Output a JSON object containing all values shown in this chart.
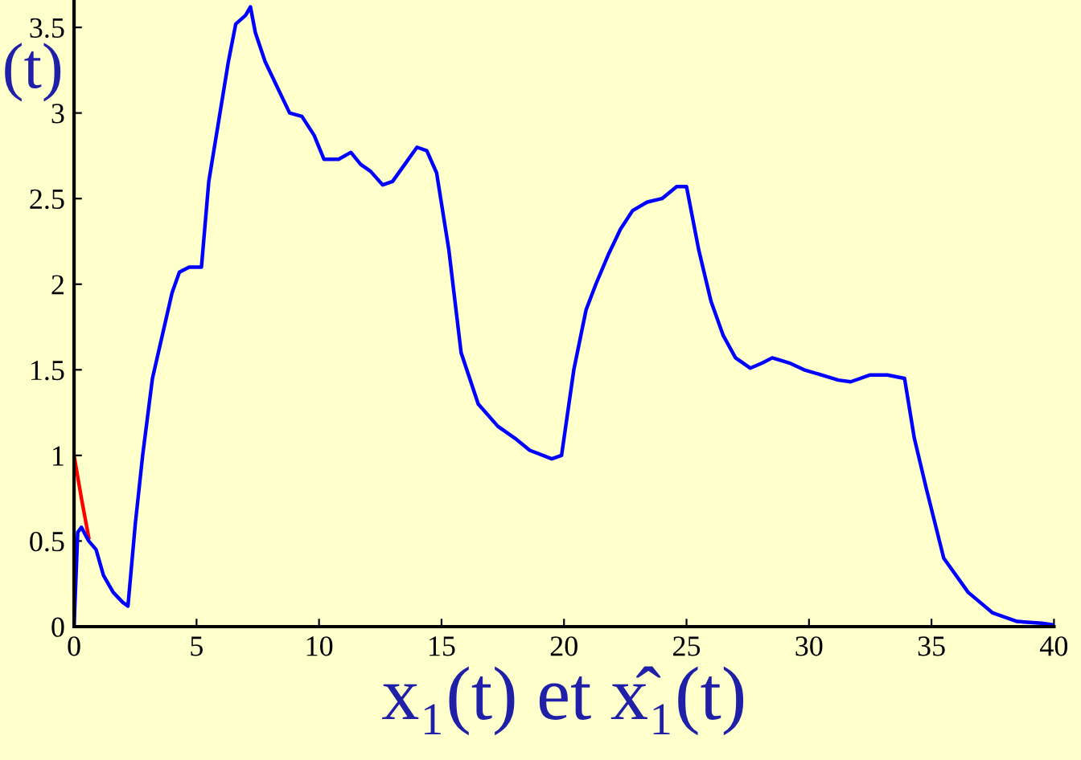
{
  "chart_data": {
    "type": "line",
    "xlabel": "x₁(t) et x̂₁(t)",
    "annotations": [
      "(t)"
    ],
    "xlim": [
      0,
      40
    ],
    "ylim": [
      0,
      3.66
    ],
    "xticks": [
      0,
      5,
      10,
      15,
      20,
      25,
      30,
      35,
      40
    ],
    "yticks": [
      0,
      0.5,
      1,
      1.5,
      2,
      2.5,
      3,
      3.5
    ],
    "grid": false,
    "legend": false,
    "marker": "none",
    "line_style": "solid",
    "series": [
      {
        "color": "#ff0000",
        "x": [
          0,
          0.3,
          0.6
        ],
        "values": [
          1.0,
          0.75,
          0.52
        ]
      },
      {
        "color": "#0000ff",
        "x": [
          0,
          0.15,
          0.3,
          0.6,
          0.9,
          1.2,
          1.6,
          2.0,
          2.2,
          2.5,
          2.8,
          3.2,
          3.6,
          4.0,
          4.3,
          4.7,
          5.0,
          5.2,
          5.5,
          5.9,
          6.3,
          6.6,
          7.0,
          7.2,
          7.4,
          7.8,
          8.3,
          8.8,
          9.3,
          9.8,
          10.2,
          10.8,
          11.3,
          11.7,
          12.1,
          12.6,
          13.0,
          13.5,
          14.0,
          14.4,
          14.8,
          15.3,
          15.8,
          16.5,
          17.3,
          18.0,
          18.6,
          19.5,
          19.9,
          20.4,
          20.9,
          21.3,
          21.8,
          22.3,
          22.8,
          23.4,
          24.0,
          24.6,
          25.0,
          25.5,
          26.0,
          26.5,
          27.0,
          27.6,
          28.1,
          28.5,
          29.2,
          29.8,
          30.5,
          31.2,
          31.7,
          32.5,
          33.2,
          33.9,
          34.3,
          34.8,
          35.5,
          36.5,
          37.5,
          38.5,
          39.5,
          40
        ],
        "values": [
          0,
          0.55,
          0.58,
          0.5,
          0.45,
          0.3,
          0.2,
          0.14,
          0.12,
          0.6,
          1.0,
          1.45,
          1.7,
          1.95,
          2.07,
          2.1,
          2.1,
          2.1,
          2.6,
          2.95,
          3.3,
          3.52,
          3.57,
          3.62,
          3.47,
          3.3,
          3.15,
          3.0,
          2.98,
          2.87,
          2.73,
          2.73,
          2.77,
          2.7,
          2.66,
          2.58,
          2.6,
          2.7,
          2.8,
          2.78,
          2.65,
          2.2,
          1.6,
          1.3,
          1.17,
          1.1,
          1.03,
          0.98,
          1.0,
          1.5,
          1.85,
          2.0,
          2.17,
          2.32,
          2.43,
          2.48,
          2.5,
          2.57,
          2.57,
          2.2,
          1.9,
          1.7,
          1.57,
          1.51,
          1.54,
          1.57,
          1.54,
          1.5,
          1.47,
          1.44,
          1.43,
          1.47,
          1.47,
          1.45,
          1.1,
          0.8,
          0.4,
          0.2,
          0.08,
          0.03,
          0.02,
          0.01
        ]
      }
    ]
  }
}
